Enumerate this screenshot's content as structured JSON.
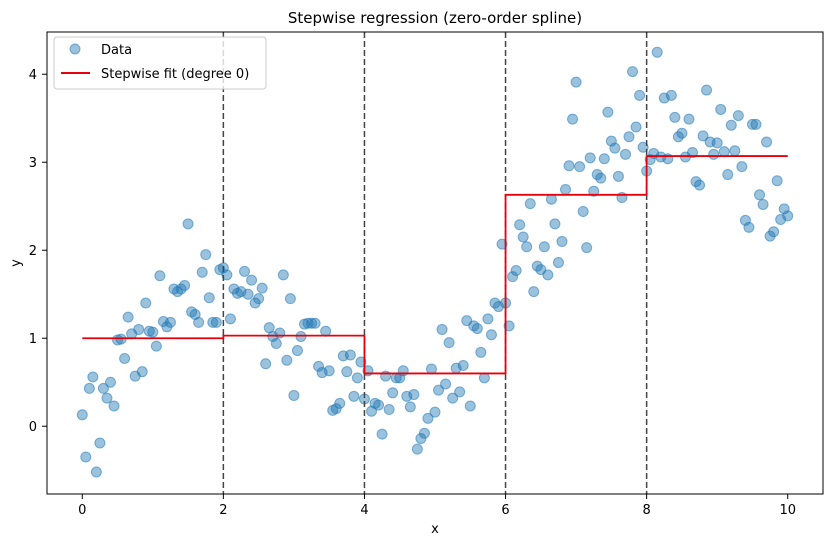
{
  "chart_data": {
    "type": "scatter",
    "title": "Stepwise regression (zero-order spline)",
    "xlabel": "x",
    "ylabel": "y",
    "xlim": [
      -0.5,
      10.5
    ],
    "ylim": [
      -0.77,
      4.48
    ],
    "xticks": [
      0,
      2,
      4,
      6,
      8,
      10
    ],
    "yticks": [
      0,
      1,
      2,
      3,
      4
    ],
    "grid": false,
    "legend_position": "top-left",
    "knots": [
      2,
      4,
      6,
      8
    ],
    "colors": {
      "points": "#1f77b4",
      "fit": "#e8000b",
      "knot_lines": "#444444"
    },
    "series": [
      {
        "name": "Data",
        "type": "scatter",
        "points": [
          [
            0.0,
            0.13
          ],
          [
            0.05,
            -0.35
          ],
          [
            0.1,
            0.43
          ],
          [
            0.15,
            0.56
          ],
          [
            0.2,
            -0.52
          ],
          [
            0.25,
            -0.19
          ],
          [
            0.3,
            0.43
          ],
          [
            0.35,
            0.32
          ],
          [
            0.4,
            0.5
          ],
          [
            0.45,
            0.23
          ],
          [
            0.5,
            0.98
          ],
          [
            0.55,
            0.99
          ],
          [
            0.6,
            0.77
          ],
          [
            0.65,
            1.24
          ],
          [
            0.7,
            1.05
          ],
          [
            0.75,
            0.57
          ],
          [
            0.8,
            1.1
          ],
          [
            0.85,
            0.62
          ],
          [
            0.9,
            1.4
          ],
          [
            0.95,
            1.08
          ],
          [
            1.0,
            1.07
          ],
          [
            1.05,
            0.91
          ],
          [
            1.1,
            1.71
          ],
          [
            1.15,
            1.19
          ],
          [
            1.2,
            1.13
          ],
          [
            1.25,
            1.18
          ],
          [
            1.3,
            1.56
          ],
          [
            1.35,
            1.53
          ],
          [
            1.4,
            1.56
          ],
          [
            1.45,
            1.6
          ],
          [
            1.5,
            2.3
          ],
          [
            1.55,
            1.3
          ],
          [
            1.6,
            1.27
          ],
          [
            1.65,
            1.18
          ],
          [
            1.7,
            1.75
          ],
          [
            1.75,
            1.95
          ],
          [
            1.8,
            1.46
          ],
          [
            1.85,
            1.18
          ],
          [
            1.9,
            1.18
          ],
          [
            1.95,
            1.78
          ],
          [
            2.0,
            1.8
          ],
          [
            2.05,
            1.72
          ],
          [
            2.1,
            1.22
          ],
          [
            2.15,
            1.56
          ],
          [
            2.2,
            1.51
          ],
          [
            2.25,
            1.53
          ],
          [
            2.3,
            1.76
          ],
          [
            2.35,
            1.5
          ],
          [
            2.4,
            1.66
          ],
          [
            2.45,
            1.4
          ],
          [
            2.5,
            1.45
          ],
          [
            2.55,
            1.57
          ],
          [
            2.6,
            0.71
          ],
          [
            2.65,
            1.12
          ],
          [
            2.7,
            1.02
          ],
          [
            2.75,
            0.94
          ],
          [
            2.8,
            1.06
          ],
          [
            2.85,
            1.72
          ],
          [
            2.9,
            0.75
          ],
          [
            2.95,
            1.45
          ],
          [
            3.0,
            0.35
          ],
          [
            3.05,
            0.86
          ],
          [
            3.1,
            1.02
          ],
          [
            3.15,
            1.16
          ],
          [
            3.2,
            1.17
          ],
          [
            3.25,
            1.17
          ],
          [
            3.3,
            1.17
          ],
          [
            3.35,
            0.68
          ],
          [
            3.4,
            0.61
          ],
          [
            3.45,
            1.08
          ],
          [
            3.5,
            0.63
          ],
          [
            3.55,
            0.18
          ],
          [
            3.6,
            0.2
          ],
          [
            3.65,
            0.26
          ],
          [
            3.7,
            0.8
          ],
          [
            3.75,
            0.62
          ],
          [
            3.8,
            0.81
          ],
          [
            3.85,
            0.34
          ],
          [
            3.9,
            0.55
          ],
          [
            3.95,
            0.73
          ],
          [
            4.0,
            0.31
          ],
          [
            4.05,
            0.63
          ],
          [
            4.1,
            0.17
          ],
          [
            4.15,
            0.26
          ],
          [
            4.2,
            0.24
          ],
          [
            4.25,
            -0.09
          ],
          [
            4.3,
            0.57
          ],
          [
            4.35,
            0.19
          ],
          [
            4.4,
            0.38
          ],
          [
            4.45,
            0.55
          ],
          [
            4.5,
            0.55
          ],
          [
            4.55,
            0.63
          ],
          [
            4.6,
            0.34
          ],
          [
            4.65,
            0.22
          ],
          [
            4.7,
            0.36
          ],
          [
            4.75,
            -0.26
          ],
          [
            4.8,
            -0.14
          ],
          [
            4.85,
            -0.08
          ],
          [
            4.9,
            0.09
          ],
          [
            4.95,
            0.65
          ],
          [
            5.0,
            0.16
          ],
          [
            5.05,
            0.41
          ],
          [
            5.1,
            1.1
          ],
          [
            5.15,
            0.48
          ],
          [
            5.2,
            0.95
          ],
          [
            5.25,
            0.32
          ],
          [
            5.3,
            0.66
          ],
          [
            5.35,
            0.39
          ],
          [
            5.4,
            0.69
          ],
          [
            5.45,
            1.2
          ],
          [
            5.5,
            0.23
          ],
          [
            5.55,
            1.14
          ],
          [
            5.6,
            1.11
          ],
          [
            5.65,
            0.84
          ],
          [
            5.7,
            0.55
          ],
          [
            5.75,
            1.22
          ],
          [
            5.8,
            1.04
          ],
          [
            5.85,
            1.4
          ],
          [
            5.9,
            1.36
          ],
          [
            5.95,
            2.07
          ],
          [
            6.0,
            1.4
          ],
          [
            6.05,
            1.14
          ],
          [
            6.1,
            1.7
          ],
          [
            6.15,
            1.77
          ],
          [
            6.2,
            2.29
          ],
          [
            6.25,
            2.15
          ],
          [
            6.3,
            2.04
          ],
          [
            6.35,
            2.53
          ],
          [
            6.4,
            1.53
          ],
          [
            6.45,
            1.82
          ],
          [
            6.5,
            1.78
          ],
          [
            6.55,
            2.04
          ],
          [
            6.6,
            1.72
          ],
          [
            6.65,
            2.58
          ],
          [
            6.7,
            2.3
          ],
          [
            6.75,
            1.86
          ],
          [
            6.8,
            2.1
          ],
          [
            6.85,
            2.69
          ],
          [
            6.9,
            2.96
          ],
          [
            6.95,
            3.49
          ],
          [
            7.0,
            3.91
          ],
          [
            7.05,
            2.95
          ],
          [
            7.1,
            2.44
          ],
          [
            7.15,
            2.03
          ],
          [
            7.2,
            3.05
          ],
          [
            7.25,
            2.67
          ],
          [
            7.3,
            2.86
          ],
          [
            7.35,
            2.82
          ],
          [
            7.4,
            3.04
          ],
          [
            7.45,
            3.57
          ],
          [
            7.5,
            3.24
          ],
          [
            7.55,
            3.16
          ],
          [
            7.6,
            2.84
          ],
          [
            7.65,
            2.6
          ],
          [
            7.7,
            3.09
          ],
          [
            7.75,
            3.29
          ],
          [
            7.8,
            4.03
          ],
          [
            7.85,
            3.4
          ],
          [
            7.9,
            3.76
          ],
          [
            7.95,
            3.17
          ],
          [
            8.0,
            2.9
          ],
          [
            8.05,
            3.03
          ],
          [
            8.1,
            3.1
          ],
          [
            8.15,
            4.25
          ],
          [
            8.2,
            3.06
          ],
          [
            8.25,
            3.73
          ],
          [
            8.3,
            3.04
          ],
          [
            8.35,
            3.76
          ],
          [
            8.4,
            3.51
          ],
          [
            8.45,
            3.29
          ],
          [
            8.5,
            3.33
          ],
          [
            8.55,
            3.06
          ],
          [
            8.6,
            3.49
          ],
          [
            8.65,
            3.11
          ],
          [
            8.7,
            2.78
          ],
          [
            8.75,
            2.74
          ],
          [
            8.8,
            3.3
          ],
          [
            8.85,
            3.82
          ],
          [
            8.9,
            3.23
          ],
          [
            8.95,
            3.09
          ],
          [
            9.0,
            3.22
          ],
          [
            9.05,
            3.6
          ],
          [
            9.1,
            3.12
          ],
          [
            9.15,
            2.86
          ],
          [
            9.2,
            3.42
          ],
          [
            9.25,
            3.13
          ],
          [
            9.3,
            3.53
          ],
          [
            9.35,
            2.95
          ],
          [
            9.4,
            2.34
          ],
          [
            9.45,
            2.26
          ],
          [
            9.5,
            3.43
          ],
          [
            9.55,
            3.43
          ],
          [
            9.6,
            2.63
          ],
          [
            9.65,
            2.52
          ],
          [
            9.7,
            3.23
          ],
          [
            9.75,
            2.16
          ],
          [
            9.8,
            2.21
          ],
          [
            9.85,
            2.79
          ],
          [
            9.9,
            2.35
          ],
          [
            9.95,
            2.47
          ],
          [
            10.0,
            2.39
          ]
        ]
      },
      {
        "name": "Stepwise fit (degree 0)",
        "type": "step",
        "points": [
          [
            0.0,
            1.0
          ],
          [
            2.0,
            1.0
          ],
          [
            2.0,
            1.03
          ],
          [
            4.0,
            1.03
          ],
          [
            4.0,
            0.6
          ],
          [
            6.0,
            0.6
          ],
          [
            6.0,
            2.63
          ],
          [
            8.0,
            2.63
          ],
          [
            8.0,
            3.07
          ],
          [
            10.0,
            3.07
          ]
        ]
      }
    ]
  }
}
